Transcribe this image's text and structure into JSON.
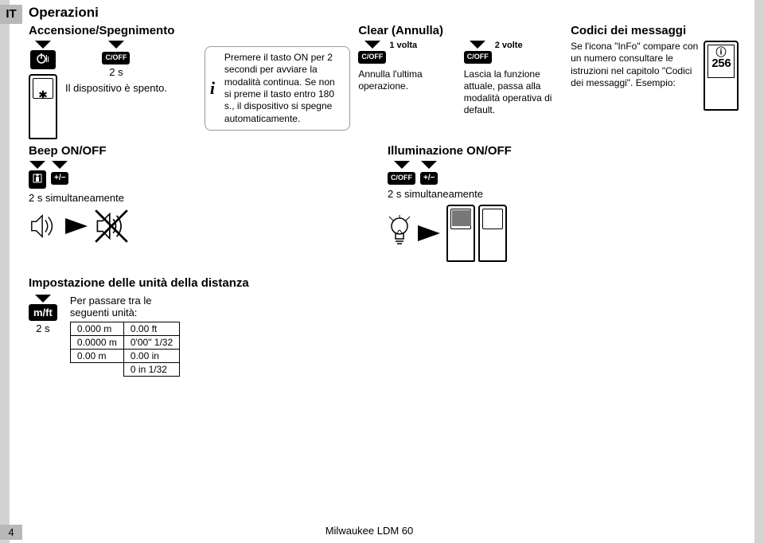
{
  "lang": "IT",
  "title": "Operazioni",
  "power": {
    "heading": "Accensione/Spegnimento",
    "duration": "2 s",
    "off_text": "Il dispositivo è spento.",
    "info_text": "Premere il tasto ON per 2 secondi per avviare la modalità continua. Se non si preme il tasto entro 180 s., il dispositivo si spegne automaticamente.",
    "on_btn": "⏻",
    "coff_btn": "C/OFF"
  },
  "clear": {
    "heading": "Clear (Annulla)",
    "once_label": "1 volta",
    "twice_label": "2 volte",
    "once_text": "Annulla l'ultima operazione.",
    "twice_text": "Lascia la funzione attuale, passa alla modalità operativa di default.",
    "coff_btn": "C/OFF"
  },
  "codes": {
    "heading": "Codici dei messaggi",
    "text": "Se l'icona \"InFo\" compare con un numero consultare le istruzioni nel capitolo \"Codici dei messaggi\". Esempio:",
    "info_icon": "ⓘ",
    "example_num": "256"
  },
  "beep": {
    "heading": "Beep ON/OFF",
    "btn1": "▯",
    "btn2": "+/−",
    "simul": "2 s simultaneamente"
  },
  "illum": {
    "heading": "Illuminazione ON/OFF",
    "btn1": "C/OFF",
    "btn2": "+/−",
    "simul": "2 s simultaneamente"
  },
  "units": {
    "heading": "Impostazione delle unità della distanza",
    "btn": "m/ft",
    "duration": "2 s",
    "caption": "Per passare tra le seguenti unità:",
    "rows": [
      [
        "0.000 m",
        "0.00 ft"
      ],
      [
        "0.0000 m",
        "0'00\" 1/32"
      ],
      [
        "0.00 m",
        "0.00 in"
      ],
      [
        "",
        "0 in 1/32"
      ]
    ]
  },
  "footer": {
    "page": "4",
    "product": "Milwaukee LDM 60"
  },
  "colors": {
    "page_bg": "#ffffff",
    "outer_bg": "#d3d3d3",
    "tag_bg": "#b8b8b8",
    "btn_bg": "#000000",
    "btn_fg": "#ffffff",
    "text": "#000000"
  }
}
